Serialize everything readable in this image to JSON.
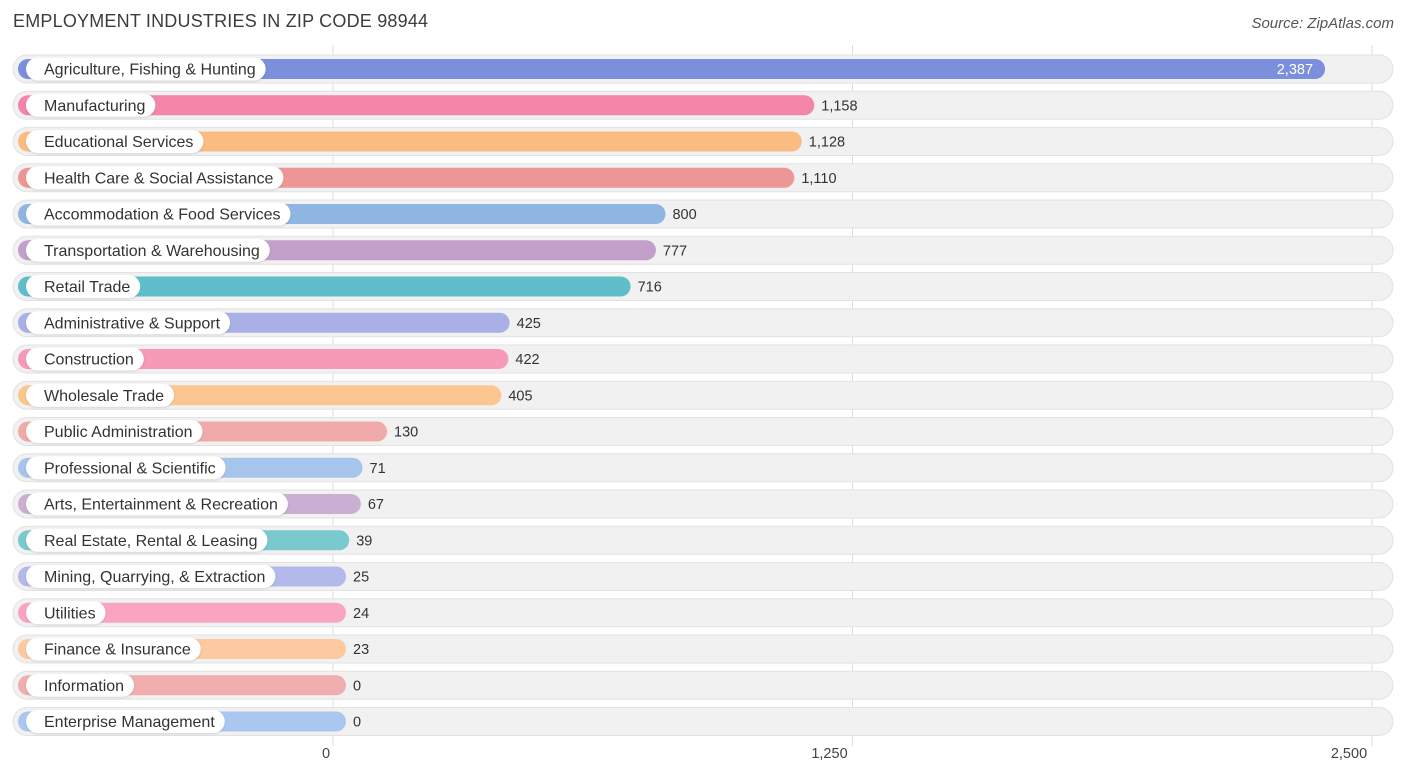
{
  "header": {
    "title": "EMPLOYMENT INDUSTRIES IN ZIP CODE 98944",
    "source": "Source: ZipAtlas.com"
  },
  "chart_data": {
    "type": "bar",
    "orientation": "horizontal",
    "title": "EMPLOYMENT INDUSTRIES IN ZIP CODE 98944",
    "xlim": [
      0,
      2500
    ],
    "xticks": [
      0,
      1250,
      2500
    ],
    "xtick_labels": [
      "0",
      "1,250",
      "2,500"
    ],
    "grid": true,
    "categories": [
      "Agriculture, Fishing & Hunting",
      "Manufacturing",
      "Educational Services",
      "Health Care & Social Assistance",
      "Accommodation & Food Services",
      "Transportation & Warehousing",
      "Retail Trade",
      "Administrative & Support",
      "Construction",
      "Wholesale Trade",
      "Public Administration",
      "Professional & Scientific",
      "Arts, Entertainment & Recreation",
      "Real Estate, Rental & Leasing",
      "Mining, Quarrying, & Extraction",
      "Utilities",
      "Finance & Insurance",
      "Information",
      "Enterprise Management"
    ],
    "values": [
      2387,
      1158,
      1128,
      1110,
      800,
      777,
      716,
      425,
      422,
      405,
      130,
      71,
      67,
      39,
      25,
      24,
      23,
      0,
      0
    ],
    "value_labels": [
      "2,387",
      "1,158",
      "1,128",
      "1,110",
      "800",
      "777",
      "716",
      "425",
      "422",
      "405",
      "130",
      "71",
      "67",
      "39",
      "25",
      "24",
      "23",
      "0",
      "0"
    ],
    "colors": [
      "#7b8fdc",
      "#f386a8",
      "#fbbc82",
      "#ec9795",
      "#8fb5e3",
      "#c39fcb",
      "#5ebfca",
      "#a9b0e6",
      "#f79ab7",
      "#fbc68f",
      "#f0aaa9",
      "#a7c5ec",
      "#cbafd3",
      "#79c9cf",
      "#b3b9ea",
      "#f9a4c0",
      "#fcc9a0",
      "#f1aeae",
      "#aac8ef"
    ]
  }
}
